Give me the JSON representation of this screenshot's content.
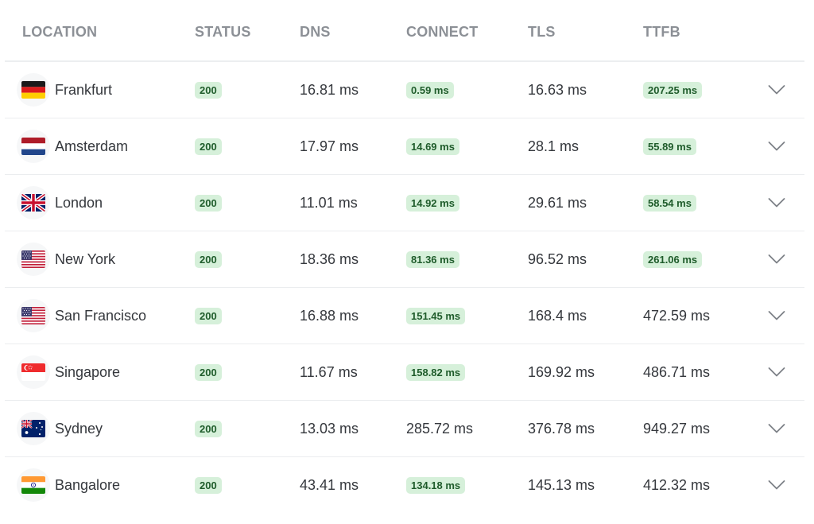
{
  "columns": [
    "LOCATION",
    "STATUS",
    "DNS",
    "CONNECT",
    "TLS",
    "TTFB"
  ],
  "colors": {
    "badge_bg": "#d6f0da",
    "badge_text": "#1f5c2b",
    "header_text": "#8c9096"
  },
  "rows": [
    {
      "location": "Frankfurt",
      "flag": "flag-germany",
      "status": "200",
      "dns": "16.81 ms",
      "connect": "0.59 ms",
      "connect_badge": true,
      "tls": "16.63 ms",
      "ttfb": "207.25 ms",
      "ttfb_badge": true
    },
    {
      "location": "Amsterdam",
      "flag": "flag-netherlands",
      "status": "200",
      "dns": "17.97 ms",
      "connect": "14.69 ms",
      "connect_badge": true,
      "tls": "28.1 ms",
      "ttfb": "55.89 ms",
      "ttfb_badge": true
    },
    {
      "location": "London",
      "flag": "flag-united-kingdom",
      "status": "200",
      "dns": "11.01 ms",
      "connect": "14.92 ms",
      "connect_badge": true,
      "tls": "29.61 ms",
      "ttfb": "58.54 ms",
      "ttfb_badge": true
    },
    {
      "location": "New York",
      "flag": "flag-united-states",
      "status": "200",
      "dns": "18.36 ms",
      "connect": "81.36 ms",
      "connect_badge": true,
      "tls": "96.52 ms",
      "ttfb": "261.06 ms",
      "ttfb_badge": true
    },
    {
      "location": "San Francisco",
      "flag": "flag-united-states",
      "status": "200",
      "dns": "16.88 ms",
      "connect": "151.45 ms",
      "connect_badge": true,
      "tls": "168.4 ms",
      "ttfb": "472.59 ms",
      "ttfb_badge": false
    },
    {
      "location": "Singapore",
      "flag": "flag-singapore",
      "status": "200",
      "dns": "11.67 ms",
      "connect": "158.82 ms",
      "connect_badge": true,
      "tls": "169.92 ms",
      "ttfb": "486.71 ms",
      "ttfb_badge": false
    },
    {
      "location": "Sydney",
      "flag": "flag-australia",
      "status": "200",
      "dns": "13.03 ms",
      "connect": "285.72 ms",
      "connect_badge": false,
      "tls": "376.78 ms",
      "ttfb": "949.27 ms",
      "ttfb_badge": false
    },
    {
      "location": "Bangalore",
      "flag": "flag-india",
      "status": "200",
      "dns": "43.41 ms",
      "connect": "134.18 ms",
      "connect_badge": true,
      "tls": "145.13 ms",
      "ttfb": "412.32 ms",
      "ttfb_badge": false
    }
  ]
}
